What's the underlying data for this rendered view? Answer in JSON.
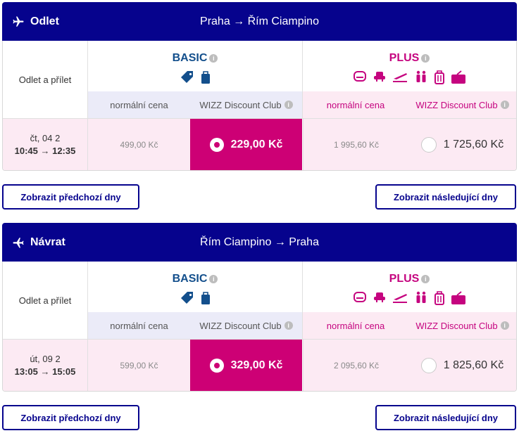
{
  "colors": {
    "header_bg": "#06038d",
    "basic": "#134f8c",
    "plus": "#c5047f",
    "selected": "#cd0075",
    "row_bg": "#fceaf3",
    "basic_sub_bg": "#ebebf8"
  },
  "outbound": {
    "direction": "Odlet",
    "route": "Praha → Řím Ciampino",
    "label": "Odlet a přílet",
    "basic_title": "BASIC",
    "plus_title": "PLUS",
    "basic_normal_header": "normální cena",
    "basic_wdc_header": "WIZZ Discount Club",
    "plus_normal_header": "normální cena",
    "plus_wdc_header": "WIZZ Discount Club",
    "date": "čt, 04 2",
    "time": "10:45 → 12:35",
    "basic_normal_price": "499,00 Kč",
    "basic_wdc_price": "229,00 Kč",
    "plus_normal_price": "1 995,60 Kč",
    "plus_wdc_price": "1 725,60 Kč",
    "prev_button": "Zobrazit předchozí dny",
    "next_button": "Zobrazit následující dny"
  },
  "return": {
    "direction": "Návrat",
    "route": "Řím Ciampino → Praha",
    "label": "Odlet a přílet",
    "basic_title": "BASIC",
    "plus_title": "PLUS",
    "basic_normal_header": "normální cena",
    "basic_wdc_header": "WIZZ Discount Club",
    "plus_normal_header": "normální cena",
    "plus_wdc_header": "WIZZ Discount Club",
    "date": "út, 09 2",
    "time": "13:05 → 15:05",
    "basic_normal_price": "599,00 Kč",
    "basic_wdc_price": "329,00 Kč",
    "plus_normal_price": "2 095,60 Kč",
    "plus_wdc_price": "1 825,60 Kč",
    "prev_button": "Zobrazit předchozí dny",
    "next_button": "Zobrazit následující dny"
  },
  "icons": {
    "basic": [
      "tag-icon",
      "bag-icon"
    ],
    "plus": [
      "seat-icon",
      "priority-seat-icon",
      "takeoff-icon",
      "family-icon",
      "trolley-icon",
      "checked-bag-icon"
    ]
  }
}
